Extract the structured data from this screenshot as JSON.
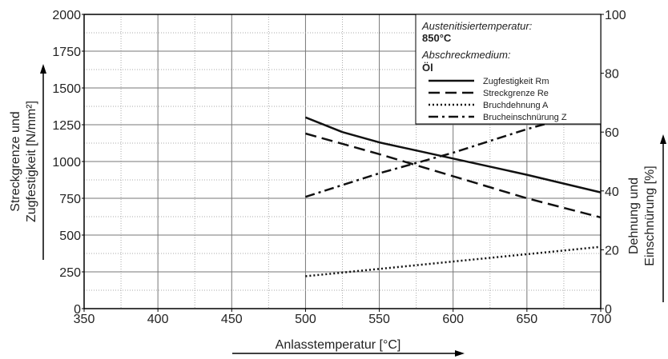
{
  "chart_data": {
    "type": "line",
    "xlabel": "Anlasstemperatur [°C]",
    "ylabel_left_line1": "Streckgrenze und",
    "ylabel_left_line2": "Zugfestigkeit [N/mm²]",
    "ylabel_right_line1": "Dehnung und",
    "ylabel_right_line2": "Einschnürung [%]",
    "xlim": [
      350,
      700
    ],
    "ylim_left": [
      0,
      2000
    ],
    "ylim_right": [
      0,
      100
    ],
    "x_ticks": [
      350,
      400,
      450,
      500,
      550,
      600,
      650,
      700
    ],
    "y_left_ticks": [
      0,
      250,
      500,
      750,
      1000,
      1250,
      1500,
      1750,
      2000
    ],
    "y_right_ticks": [
      0,
      20,
      40,
      60,
      80,
      100
    ],
    "grid": true,
    "legend_position": "top-right",
    "info": {
      "label1": "Austenitisiertemperatur:",
      "value1": "850°C",
      "label2": "Abschreckmedium:",
      "value2": "Öl"
    },
    "series": [
      {
        "name": "Zugfestigkeit Rm",
        "axis": "left",
        "style": "solid",
        "x": [
          500,
          525,
          550,
          600,
          650,
          700
        ],
        "y": [
          1300,
          1200,
          1130,
          1020,
          910,
          790
        ]
      },
      {
        "name": "Streckgrenze Re",
        "axis": "left",
        "style": "dashed",
        "x": [
          500,
          550,
          600,
          650,
          700
        ],
        "y": [
          1190,
          1050,
          900,
          750,
          620
        ]
      },
      {
        "name": "Bruchdehnung A",
        "axis": "right",
        "style": "dotted",
        "x": [
          500,
          600,
          700
        ],
        "y": [
          11,
          16,
          21
        ]
      },
      {
        "name": "Brucheinschnürung Z",
        "axis": "right",
        "style": "dashdot",
        "x": [
          500,
          550,
          600,
          650,
          700
        ],
        "y": [
          38,
          46,
          53,
          61,
          68
        ]
      }
    ]
  }
}
